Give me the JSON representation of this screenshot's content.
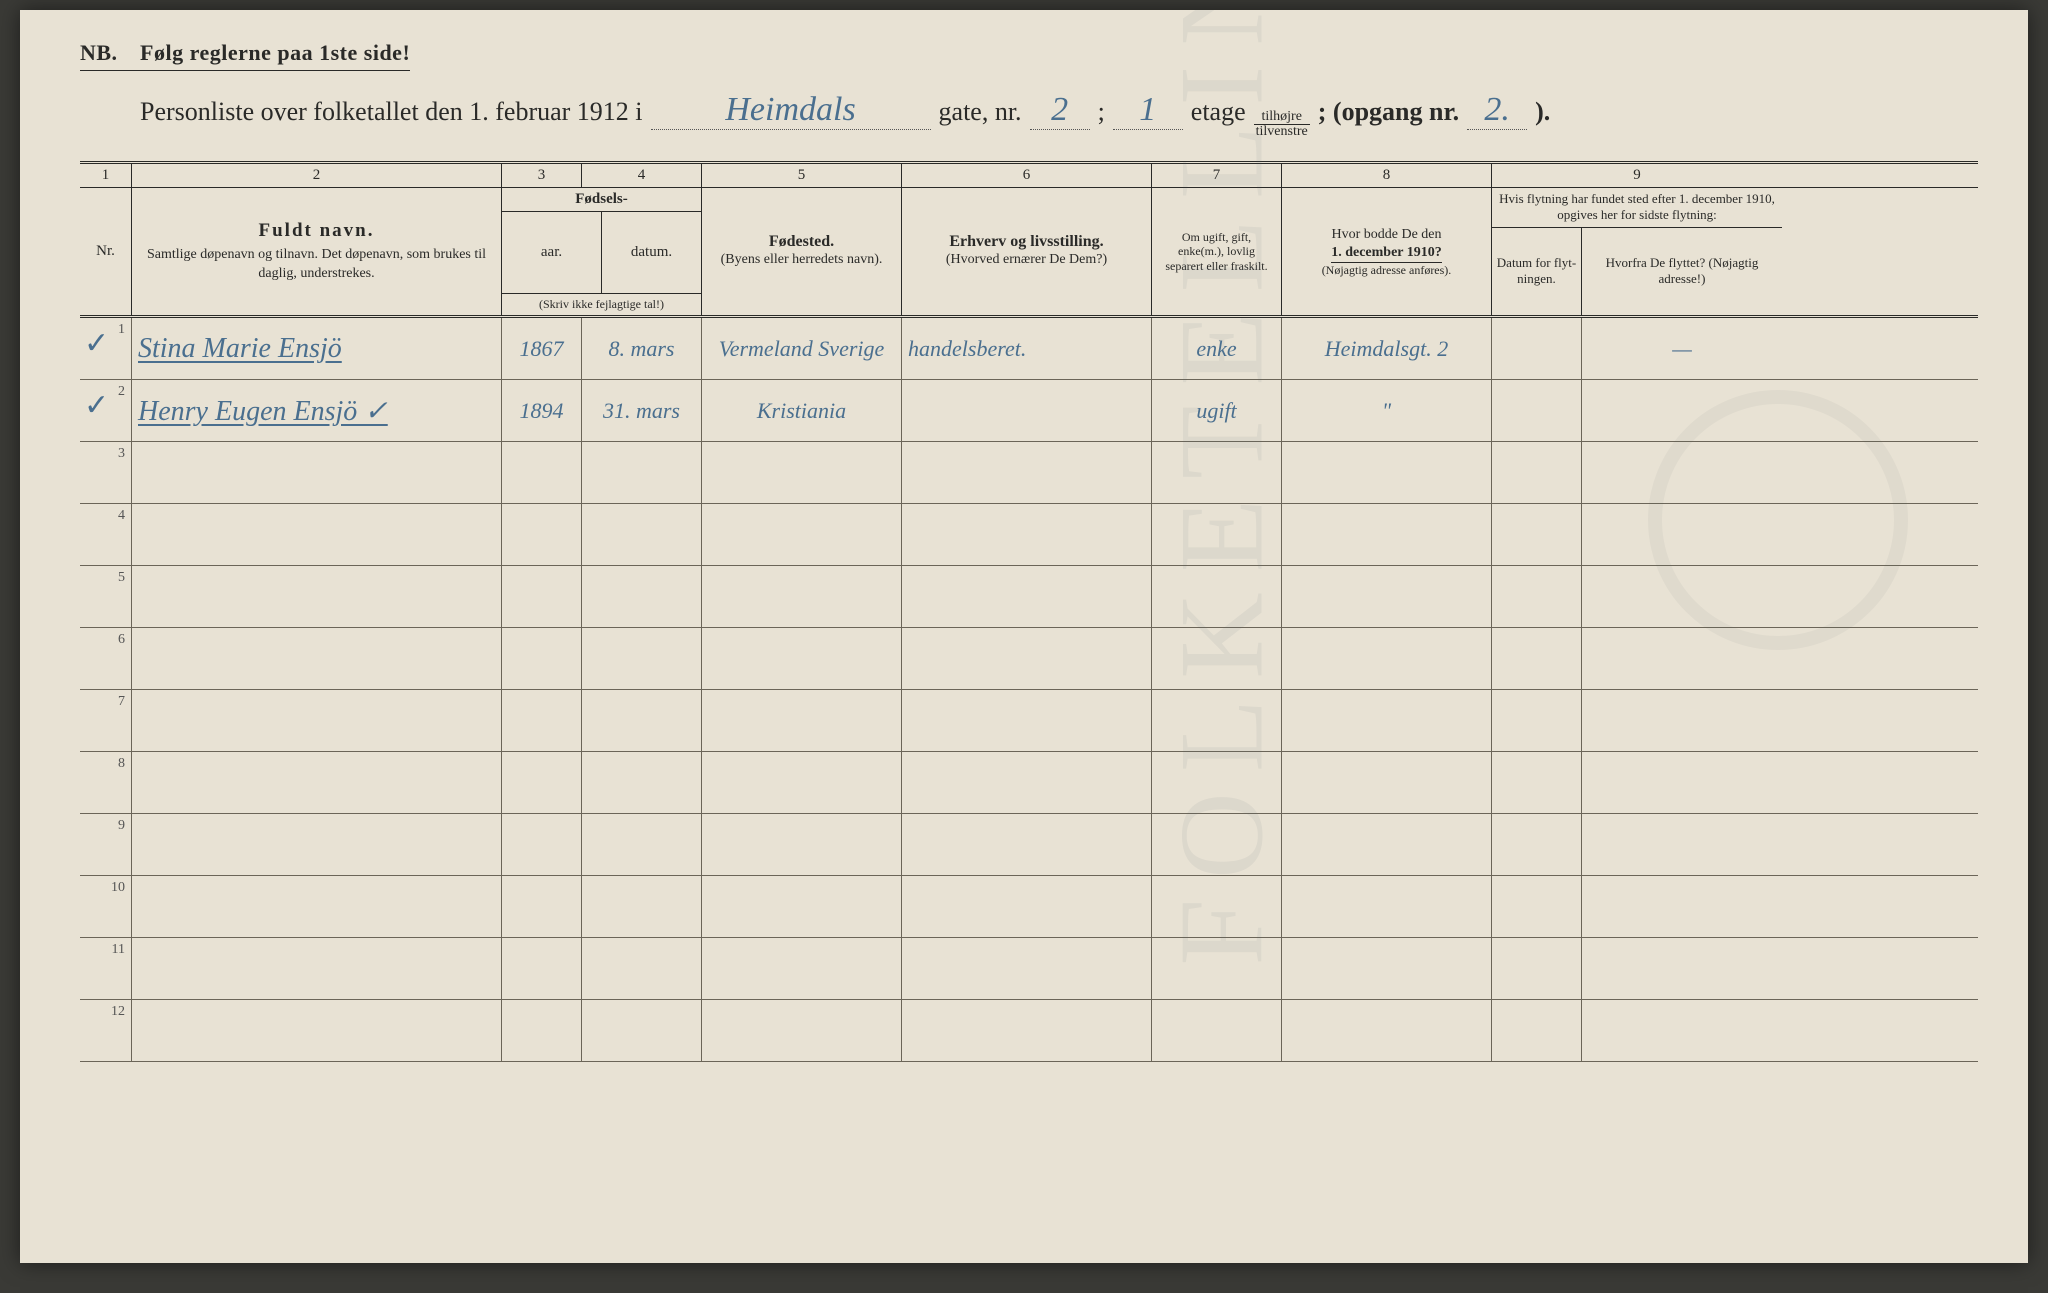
{
  "nb_line": "NB. Følg reglerne paa 1ste side!",
  "title": {
    "prefix": "Personliste over folketallet den 1. februar 1912 i",
    "street": "Heimdals",
    "gate_nr_label": "gate, nr.",
    "gate_nr": "2",
    "semicolon": ";",
    "etage_nr": "1",
    "etage_label": "etage",
    "fraction_top": "tilhøjre",
    "fraction_bot": "tilvenstre",
    "opgang_label": "; (opgang nr.",
    "opgang_nr": "2.",
    "close": ")."
  },
  "colnums": [
    "1",
    "2",
    "3",
    "4",
    "5",
    "6",
    "7",
    "8",
    "9"
  ],
  "headers": {
    "nr": "Nr.",
    "name_main": "Fuldt navn.",
    "name_sub": "Samtlige døpenavn og tilnavn. Det døpenavn, som brukes til daglig, understrekes.",
    "fodsels_top": "Fødsels-",
    "aar": "aar.",
    "datum": "datum.",
    "fodsels_note": "(Skriv ikke fejlagtige tal!)",
    "fodested_main": "Fødested.",
    "fodested_sub": "(Byens eller herredets navn).",
    "erhverv_main": "Erhverv og livsstilling.",
    "erhverv_sub": "(Hvorved ernærer De Dem?)",
    "col7": "Om ugift, gift, enke(m.), lovlig separert eller fraskilt.",
    "col8_l1": "Hvor bodde De den",
    "col8_l2": "1. december 1910?",
    "col8_l3": "(Nøjagtig adresse anføres).",
    "col9_top": "Hvis flytning har fundet sted efter 1. december 1910, opgives her for sidste flytning:",
    "col9a": "Datum for flyt-ningen.",
    "col9b": "Hvorfra De flyttet? (Nøjagtig adresse!)"
  },
  "rows": [
    {
      "nr": "1",
      "check": "✓",
      "name": "Stina Marie Ensjö",
      "aar": "1867",
      "datum": "8. mars",
      "fodested": "Vermeland Sverige",
      "erhverv": "handelsberet.",
      "col7": "enke",
      "col8": "Heimdalsgt. 2",
      "col9a": "",
      "col9b": "—"
    },
    {
      "nr": "2",
      "check": "✓",
      "name": "Henry Eugen Ensjö  ✓",
      "aar": "1894",
      "datum": "31. mars",
      "fodested": "Kristiania",
      "erhverv": "",
      "col7": "ugift",
      "col8": "\"",
      "col9a": "",
      "col9b": ""
    },
    {
      "nr": "3"
    },
    {
      "nr": "4"
    },
    {
      "nr": "5"
    },
    {
      "nr": "6"
    },
    {
      "nr": "7"
    },
    {
      "nr": "8"
    },
    {
      "nr": "9"
    },
    {
      "nr": "10"
    },
    {
      "nr": "11"
    },
    {
      "nr": "12"
    }
  ]
}
